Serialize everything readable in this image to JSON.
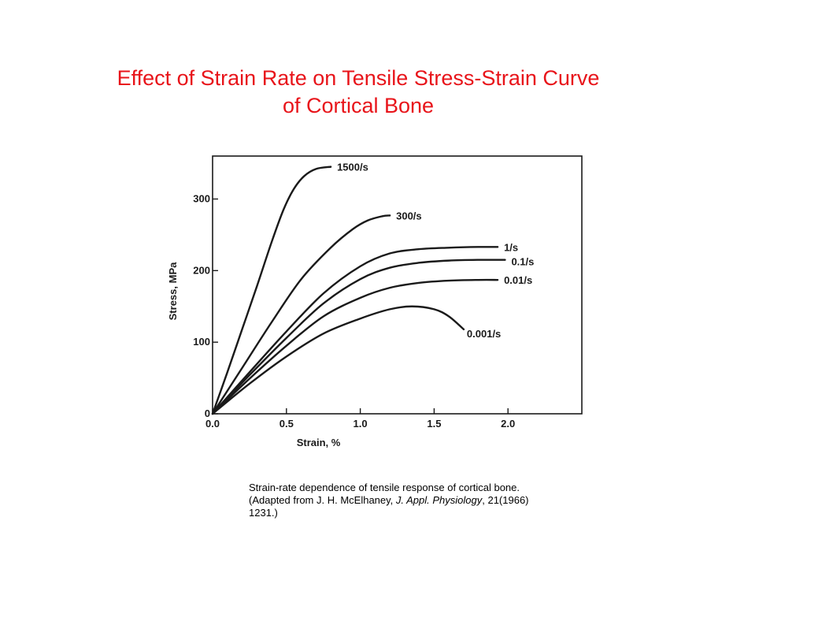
{
  "title": {
    "line1": "Effect of Strain Rate on Tensile Stress-Strain Curve",
    "line2": "of Cortical Bone"
  },
  "caption": {
    "text_before_journal": "Strain-rate dependence of tensile response of cortical bone. (Adapted from J. H. McElhaney, ",
    "journal": "J. Appl. Physiology",
    "text_after_journal": ", 21(1966) 1231.)"
  },
  "chart_data": {
    "type": "line",
    "xlabel": "Strain, %",
    "ylabel": "Stress, MPa",
    "xlim": [
      0,
      2.5
    ],
    "ylim": [
      0,
      360
    ],
    "x_ticks": [
      {
        "value": 0.0,
        "label": "0.0"
      },
      {
        "value": 0.5,
        "label": "0.5"
      },
      {
        "value": 1.0,
        "label": "1.0"
      },
      {
        "value": 1.5,
        "label": "1.5"
      },
      {
        "value": 2.0,
        "label": "2.0"
      }
    ],
    "y_ticks": [
      {
        "value": 0,
        "label": "0"
      },
      {
        "value": 100,
        "label": "100"
      },
      {
        "value": 200,
        "label": "200"
      },
      {
        "value": 300,
        "label": "300"
      }
    ],
    "grid": false,
    "line_color": "#1a1a1a",
    "series": [
      {
        "name": "1500/s",
        "points": [
          [
            0,
            0
          ],
          [
            0.1,
            58
          ],
          [
            0.2,
            118
          ],
          [
            0.3,
            178
          ],
          [
            0.4,
            240
          ],
          [
            0.48,
            285
          ],
          [
            0.55,
            314
          ],
          [
            0.62,
            332
          ],
          [
            0.7,
            342
          ],
          [
            0.8,
            345
          ]
        ]
      },
      {
        "name": "300/s",
        "points": [
          [
            0,
            0
          ],
          [
            0.2,
            64
          ],
          [
            0.4,
            128
          ],
          [
            0.6,
            188
          ],
          [
            0.8,
            232
          ],
          [
            0.95,
            258
          ],
          [
            1.05,
            270
          ],
          [
            1.15,
            276
          ],
          [
            1.2,
            277
          ]
        ]
      },
      {
        "name": "1/s",
        "points": [
          [
            0,
            0
          ],
          [
            0.25,
            58
          ],
          [
            0.5,
            115
          ],
          [
            0.75,
            168
          ],
          [
            1.0,
            206
          ],
          [
            1.2,
            224
          ],
          [
            1.4,
            230
          ],
          [
            1.6,
            232
          ],
          [
            1.8,
            233
          ],
          [
            1.93,
            233
          ]
        ]
      },
      {
        "name": "0.1/s",
        "points": [
          [
            0,
            0
          ],
          [
            0.25,
            54
          ],
          [
            0.5,
            106
          ],
          [
            0.75,
            154
          ],
          [
            1.0,
            188
          ],
          [
            1.2,
            204
          ],
          [
            1.4,
            211
          ],
          [
            1.6,
            214
          ],
          [
            1.8,
            215
          ],
          [
            1.98,
            215
          ]
        ]
      },
      {
        "name": "0.01/s",
        "points": [
          [
            0,
            0
          ],
          [
            0.25,
            49
          ],
          [
            0.5,
            95
          ],
          [
            0.75,
            136
          ],
          [
            1.0,
            162
          ],
          [
            1.2,
            176
          ],
          [
            1.4,
            183
          ],
          [
            1.6,
            186
          ],
          [
            1.8,
            187
          ],
          [
            1.93,
            187
          ]
        ]
      },
      {
        "name": "0.001/s",
        "points": [
          [
            0,
            0
          ],
          [
            0.25,
            42
          ],
          [
            0.5,
            80
          ],
          [
            0.75,
            112
          ],
          [
            1.0,
            133
          ],
          [
            1.2,
            146
          ],
          [
            1.35,
            150
          ],
          [
            1.5,
            146
          ],
          [
            1.6,
            136
          ],
          [
            1.7,
            118
          ]
        ]
      }
    ]
  }
}
